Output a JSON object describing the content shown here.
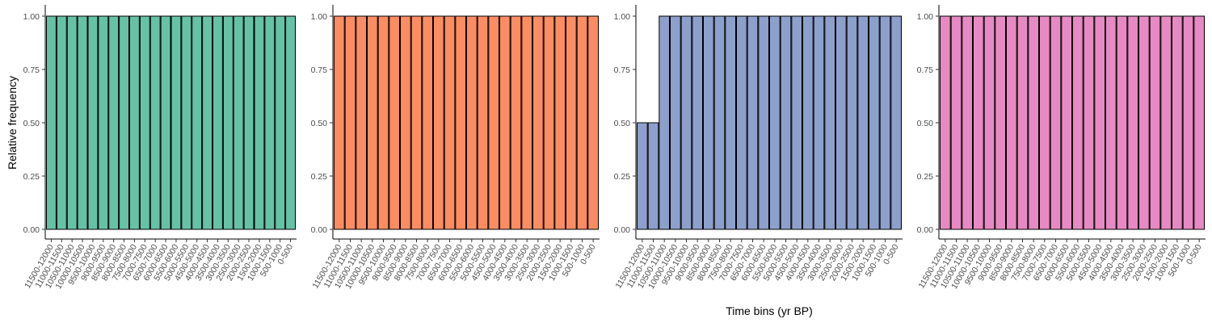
{
  "figure": {
    "ylabel": "Relative frequency",
    "xlabel": "Time bins (yr BP)"
  },
  "chart_data": [
    {
      "type": "bar",
      "color": "#66C2A5",
      "ylim": [
        0,
        1
      ],
      "yticks": [
        "0.00",
        "0.25",
        "0.50",
        "0.75",
        "1.00"
      ],
      "grid": false,
      "categories": [
        "11500-12000",
        "11000-11500",
        "10500-11000",
        "10000-10500",
        "9500-10000",
        "9000-9500",
        "8500-9000",
        "8000-8500",
        "7500-8000",
        "7000-7500",
        "6500-7000",
        "6000-6500",
        "5500-6000",
        "5000-5500",
        "4500-5000",
        "4000-4500",
        "3500-4000",
        "3000-3500",
        "2500-3000",
        "2000-2500",
        "1500-2000",
        "1000-1500",
        "500-1000",
        "0-500"
      ],
      "values": [
        1,
        1,
        1,
        1,
        1,
        1,
        1,
        1,
        1,
        1,
        1,
        1,
        1,
        1,
        1,
        1,
        1,
        1,
        1,
        1,
        1,
        1,
        1,
        1
      ]
    },
    {
      "type": "bar",
      "color": "#FC8D62",
      "ylim": [
        0,
        1
      ],
      "yticks": [
        "0.00",
        "0.25",
        "0.50",
        "0.75",
        "1.00"
      ],
      "grid": false,
      "categories": [
        "11500-12000",
        "11000-11500",
        "10500-11000",
        "10000-10500",
        "9500-10000",
        "9000-9500",
        "8500-9000",
        "8000-8500",
        "7500-8000",
        "7000-7500",
        "6500-7000",
        "6000-6500",
        "5500-6000",
        "5000-5500",
        "4500-5000",
        "4000-4500",
        "3500-4000",
        "3000-3500",
        "2500-3000",
        "2000-2500",
        "1500-2000",
        "1000-1500",
        "500-1000",
        "0-500"
      ],
      "values": [
        1,
        1,
        1,
        1,
        1,
        1,
        1,
        1,
        1,
        1,
        1,
        1,
        1,
        1,
        1,
        1,
        1,
        1,
        1,
        1,
        1,
        1,
        1,
        1
      ]
    },
    {
      "type": "bar",
      "color": "#8DA0CB",
      "ylim": [
        0,
        1
      ],
      "yticks": [
        "0.00",
        "0.25",
        "0.50",
        "0.75",
        "1.00"
      ],
      "grid": false,
      "categories": [
        "11500-12000",
        "11000-11500",
        "10500-11000",
        "10000-10500",
        "9500-10000",
        "9000-9500",
        "8500-9000",
        "8000-8500",
        "7500-8000",
        "7000-7500",
        "6500-7000",
        "6000-6500",
        "5500-6000",
        "5000-5500",
        "4500-5000",
        "4000-4500",
        "3500-4000",
        "3000-3500",
        "2500-3000",
        "2000-2500",
        "1500-2000",
        "1000-1500",
        "500-1000",
        "0-500"
      ],
      "values": [
        0.5,
        0.5,
        1,
        1,
        1,
        1,
        1,
        1,
        1,
        1,
        1,
        1,
        1,
        1,
        1,
        1,
        1,
        1,
        1,
        1,
        1,
        1,
        1,
        1
      ]
    },
    {
      "type": "bar",
      "color": "#E78AC3",
      "ylim": [
        0,
        1
      ],
      "yticks": [
        "0.00",
        "0.25",
        "0.50",
        "0.75",
        "1.00"
      ],
      "grid": false,
      "categories": [
        "11500-12000",
        "11000-11500",
        "10500-11000",
        "10000-10500",
        "9500-10000",
        "9000-9500",
        "8500-9000",
        "8000-8500",
        "7500-8000",
        "7000-7500",
        "6500-7000",
        "6000-6500",
        "5500-6000",
        "5000-5500",
        "4500-5000",
        "4000-4500",
        "3500-4000",
        "3000-3500",
        "2500-3000",
        "2000-2500",
        "1500-2000",
        "1000-1500",
        "500-1000",
        "0-500"
      ],
      "values": [
        1,
        1,
        1,
        1,
        1,
        1,
        1,
        1,
        1,
        1,
        1,
        1,
        1,
        1,
        1,
        1,
        1,
        1,
        1,
        1,
        1,
        1,
        1,
        1
      ]
    }
  ]
}
